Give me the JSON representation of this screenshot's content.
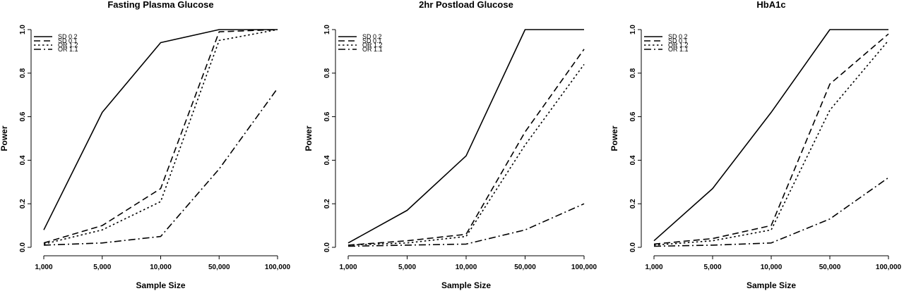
{
  "chart_data": [
    {
      "type": "line",
      "title": "Fasting Plasma Glucose",
      "xlabel": "Sample Size",
      "ylabel": "Power",
      "categories": [
        "1,000",
        "5,000",
        "10,000",
        "50,000",
        "100,000"
      ],
      "ylim": [
        0,
        1
      ],
      "yticks": [
        "0.0",
        "0.2",
        "0.4",
        "0.6",
        "0.8",
        "1.0"
      ],
      "legend_position": "top-left",
      "series": [
        {
          "name": "SD 0.2",
          "style": "solid",
          "values": [
            0.08,
            0.62,
            0.94,
            1.0,
            1.0
          ]
        },
        {
          "name": "SD 0.1",
          "style": "dashed",
          "values": [
            0.02,
            0.1,
            0.27,
            0.99,
            1.0
          ]
        },
        {
          "name": "OR 1.2",
          "style": "dotted",
          "values": [
            0.015,
            0.08,
            0.21,
            0.95,
            1.0
          ]
        },
        {
          "name": "OR 1.1",
          "style": "dashdot",
          "values": [
            0.01,
            0.02,
            0.05,
            0.36,
            0.73
          ]
        }
      ]
    },
    {
      "type": "line",
      "title": "2hr Postload Glucose",
      "xlabel": "Sample Size",
      "ylabel": "Power",
      "categories": [
        "1,000",
        "5,000",
        "10,000",
        "50,000",
        "100,000"
      ],
      "ylim": [
        0,
        1
      ],
      "yticks": [
        "0.0",
        "0.2",
        "0.4",
        "0.6",
        "0.8",
        "1.0"
      ],
      "legend_position": "top-left",
      "series": [
        {
          "name": "SD 0.2",
          "style": "solid",
          "values": [
            0.02,
            0.17,
            0.42,
            1.0,
            1.0
          ]
        },
        {
          "name": "SD 0.1",
          "style": "dashed",
          "values": [
            0.01,
            0.03,
            0.06,
            0.53,
            0.91
          ]
        },
        {
          "name": "OR 1.2",
          "style": "dotted",
          "values": [
            0.01,
            0.02,
            0.05,
            0.47,
            0.84
          ]
        },
        {
          "name": "OR 1.1",
          "style": "dashdot",
          "values": [
            0.005,
            0.01,
            0.015,
            0.08,
            0.2
          ]
        }
      ]
    },
    {
      "type": "line",
      "title": "HbA1c",
      "xlabel": "Sample Size",
      "ylabel": "Power",
      "categories": [
        "1,000",
        "5,000",
        "10,000",
        "50,000",
        "100,000"
      ],
      "ylim": [
        0,
        1
      ],
      "yticks": [
        "0.0",
        "0.2",
        "0.4",
        "0.6",
        "0.8",
        "1.0"
      ],
      "legend_position": "top-left",
      "series": [
        {
          "name": "SD 0.2",
          "style": "solid",
          "values": [
            0.03,
            0.27,
            0.62,
            1.0,
            1.0
          ]
        },
        {
          "name": "SD 0.1",
          "style": "dashed",
          "values": [
            0.015,
            0.04,
            0.1,
            0.75,
            0.98
          ]
        },
        {
          "name": "OR 1.2",
          "style": "dotted",
          "values": [
            0.01,
            0.03,
            0.08,
            0.63,
            0.95
          ]
        },
        {
          "name": "OR 1.1",
          "style": "dashdot",
          "values": [
            0.005,
            0.01,
            0.02,
            0.13,
            0.32
          ]
        }
      ]
    }
  ]
}
